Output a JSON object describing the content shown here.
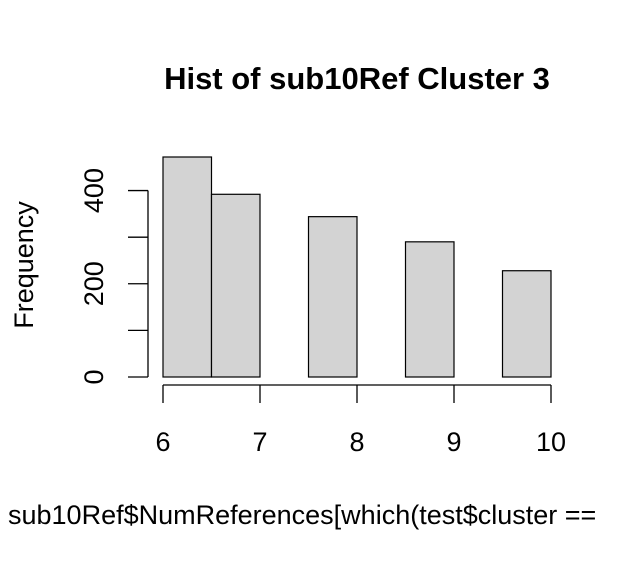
{
  "chart_data": {
    "type": "bar",
    "title": "Hist of sub10Ref Cluster 3",
    "xlabel": "sub10Ref$NumReferences[which(test$cluster ==",
    "ylabel": "Frequency",
    "bins": [
      {
        "x0": 6.0,
        "x1": 6.5,
        "count": 472
      },
      {
        "x0": 6.5,
        "x1": 7.0,
        "count": 392
      },
      {
        "x0": 7.0,
        "x1": 7.5,
        "count": 0
      },
      {
        "x0": 7.5,
        "x1": 8.0,
        "count": 344
      },
      {
        "x0": 8.0,
        "x1": 8.5,
        "count": 0
      },
      {
        "x0": 8.5,
        "x1": 9.0,
        "count": 290
      },
      {
        "x0": 9.0,
        "x1": 9.5,
        "count": 0
      },
      {
        "x0": 9.5,
        "x1": 10.0,
        "count": 228
      }
    ],
    "x_ticks": [
      6,
      7,
      8,
      9,
      10
    ],
    "x_tick_labels": [
      "6",
      "7",
      "8",
      "9",
      "10"
    ],
    "y_ticks": [
      0,
      100,
      200,
      300,
      400
    ],
    "y_tick_labels": [
      "0",
      "",
      "200",
      "",
      "400"
    ],
    "xlim": [
      6,
      10
    ],
    "ylim": [
      0,
      472
    ],
    "bar_color": "#d3d3d3",
    "grid": false
  }
}
